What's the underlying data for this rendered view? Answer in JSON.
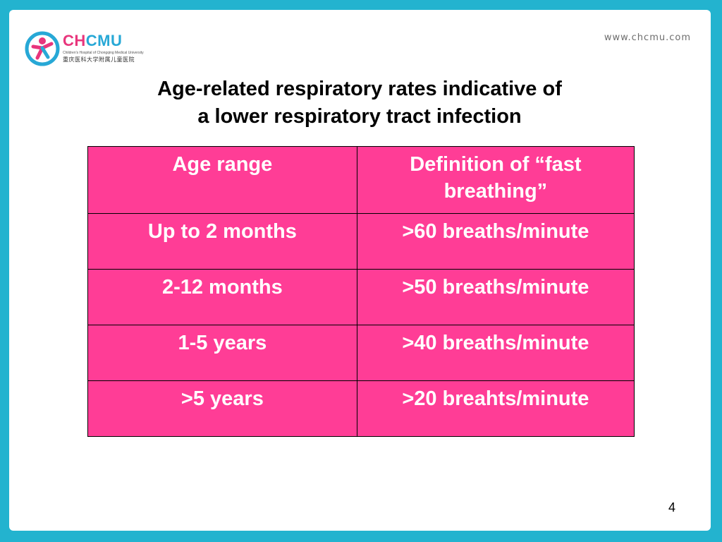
{
  "header": {
    "logo_word_ch": "CH",
    "logo_word_cmu": "CMU",
    "logo_subtitle_en": "Children's Hospital of Chongqing Medical University",
    "logo_subtitle_cn": "重庆医科大学附属儿童医院",
    "site_url": "www.chcmu.com"
  },
  "title": {
    "line1": "Age-related respiratory rates indicative of",
    "line2": "a lower respiratory tract infection"
  },
  "table": {
    "headers": [
      "Age range",
      "Definition of “fast breathing”"
    ],
    "rows": [
      [
        "Up to 2 months",
        ">60 breaths/minute"
      ],
      [
        "2-12 months",
        ">50 breaths/minute"
      ],
      [
        "1-5 years",
        ">40 breaths/minute"
      ],
      [
        ">5 years",
        ">20 breahts/minute"
      ]
    ]
  },
  "footer": {
    "page_number": "4"
  },
  "colors": {
    "frame": "#23b3cf",
    "table_fill": "#ff3d96",
    "brand_pink": "#e8357c",
    "brand_blue": "#27a8d6"
  }
}
